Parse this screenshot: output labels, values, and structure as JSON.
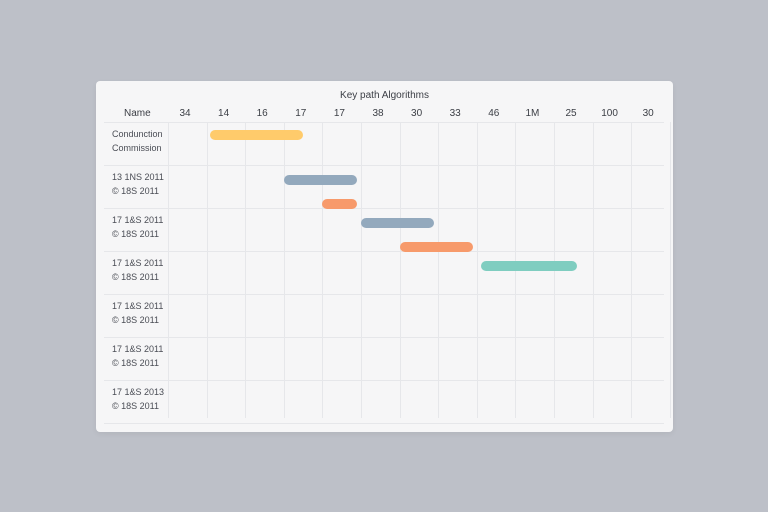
{
  "chart": {
    "title": "Key path Algorithms",
    "name_header": "Name",
    "columns": [
      "34",
      "14",
      "16",
      "17",
      "17",
      "38",
      "30",
      "33",
      "46",
      "1M",
      "25",
      "100",
      "30"
    ],
    "rows": [
      {
        "line1": "Condunction",
        "line2": "Commission"
      },
      {
        "line1": "13 1NS 2011",
        "line2": "© 18S 2011"
      },
      {
        "line1": "17 1&S 2011",
        "line2": "© 18S 2011"
      },
      {
        "line1": "17 1&S 2011",
        "line2": "© 18S 2011"
      },
      {
        "line1": "17 1&S 2011",
        "line2": "© 18S 2011"
      },
      {
        "line1": "17 1&S 2011",
        "line2": "© 18S 2011"
      },
      {
        "line1": "17 1&S 2013",
        "line2": "© 18S 2011"
      }
    ]
  },
  "bars": [
    {
      "row": 1,
      "sub": 0,
      "start": 1.1,
      "end": 3.5,
      "color": "#ffcb6b"
    },
    {
      "row": 2,
      "sub": 0,
      "start": 3.0,
      "end": 4.9,
      "color": "#93a9bd"
    },
    {
      "row": 2,
      "sub": 1,
      "start": 4.0,
      "end": 4.9,
      "color": "#f79a6b"
    },
    {
      "row": 3,
      "sub": 0,
      "start": 5.0,
      "end": 6.9,
      "color": "#93a9bd"
    },
    {
      "row": 3,
      "sub": 1,
      "start": 6.0,
      "end": 7.9,
      "color": "#f79a6b"
    },
    {
      "row": 4,
      "sub": 0,
      "start": 8.1,
      "end": 10.6,
      "color": "#7fcdc0"
    }
  ]
}
